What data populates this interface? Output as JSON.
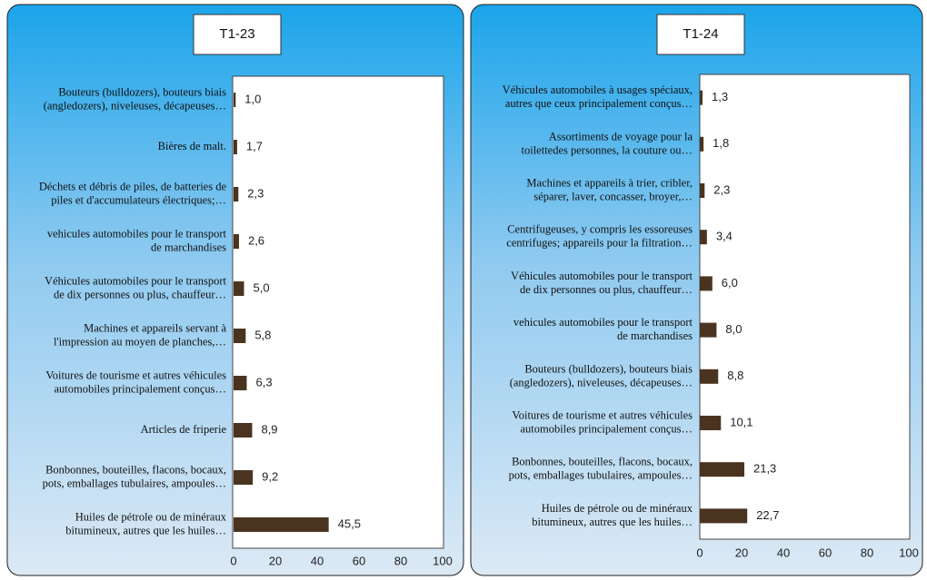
{
  "chart_data": [
    {
      "type": "bar",
      "orientation": "horizontal",
      "title": "T1-23",
      "categories": [
        "Bouteurs (bulldozers), bouteurs biais\n(angledozers), niveleuses, décapeuses…",
        "Bières de malt.",
        "Déchets et débris de piles, de batteries de\npiles et d'accumulateurs électriques;…",
        "vehicules automobiles pour le transport\nde marchandises",
        "Véhicules automobiles pour le transport\nde dix personnes ou plus, chauffeur…",
        "Machines et appareils servant à\nl'impression au moyen de  planches,…",
        "Voitures de tourisme et autres véhicules\nautomobiles principalement conçus…",
        "Articles de friperie",
        "Bonbonnes, bouteilles, flacons, bocaux,\npots, emballages tubulaires, ampoules…",
        "Huiles de pétrole ou de minéraux\nbitumineux, autres que les huiles…"
      ],
      "values": [
        1.0,
        1.7,
        2.3,
        2.6,
        5.0,
        5.8,
        6.3,
        8.9,
        9.2,
        45.5
      ],
      "value_labels": [
        "1,0",
        "1,7",
        "2,3",
        "2,6",
        "5,0",
        "5,8",
        "6,3",
        "8,9",
        "9,2",
        "45,5"
      ],
      "color": "#4a3420",
      "xlim": [
        0,
        100
      ],
      "xticks": [
        0,
        20,
        40,
        60,
        80,
        100
      ]
    },
    {
      "type": "bar",
      "orientation": "horizontal",
      "title": "T1-24",
      "categories": [
        "Véhicules automobiles à usages spéciaux,\nautres que ceux principalement conçus…",
        "Assortiments de voyage pour la\ntoilettedes personnes, la couture ou…",
        "Machines et appareils à trier, cribler,\nséparer, laver, concasser, broyer,…",
        "Centrifugeuses, y compris les essoreuses\ncentrifuges; appareils pour la filtration…",
        "Véhicules automobiles pour le transport\nde dix personnes ou plus, chauffeur…",
        "vehicules automobiles pour le transport\nde marchandises",
        "Bouteurs (bulldozers), bouteurs biais\n(angledozers), niveleuses, décapeuses…",
        "Voitures de tourisme et autres véhicules\nautomobiles principalement conçus…",
        "Bonbonnes, bouteilles, flacons, bocaux,\npots, emballages tubulaires, ampoules…",
        "Huiles de pétrole ou de minéraux\nbitumineux, autres que les huiles…"
      ],
      "values": [
        1.3,
        1.8,
        2.3,
        3.4,
        6.0,
        8.0,
        8.8,
        10.1,
        21.3,
        22.7
      ],
      "value_labels": [
        "1,3",
        "1,8",
        "2,3",
        "3,4",
        "6,0",
        "8,0",
        "8,8",
        "10,1",
        "21,3",
        "22,7"
      ],
      "color": "#4a3420",
      "xlim": [
        0,
        100
      ],
      "xticks": [
        0,
        20,
        40,
        60,
        80,
        100
      ]
    }
  ]
}
